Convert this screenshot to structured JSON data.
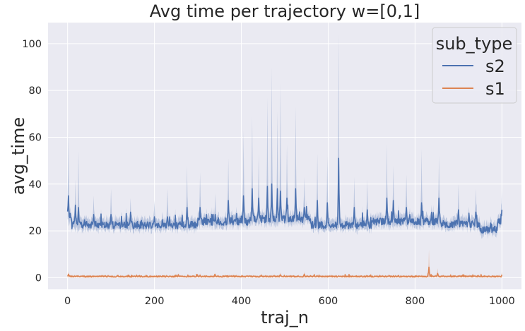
{
  "chart_data": {
    "type": "line",
    "title": "Avg time per trajectory w=[0,1]",
    "xlabel": "traj_n",
    "ylabel": "avg_time",
    "xlim": [
      -45,
      1045
    ],
    "ylim": [
      -5,
      109
    ],
    "xticks": [
      0,
      200,
      400,
      600,
      800,
      1000
    ],
    "yticks": [
      0,
      20,
      40,
      60,
      80,
      100
    ],
    "grid": true,
    "background": "#eaeaf2",
    "legend": {
      "title": "sub_type",
      "position": "top-right"
    },
    "confidence_band": true,
    "series": [
      {
        "name": "s2",
        "color": "#4c72b0",
        "base": 23,
        "noise": 1.6,
        "band": 2.6,
        "segments": [
          {
            "x": [
              0,
              10
            ],
            "value": 26
          },
          {
            "x": [
              10,
              180
            ],
            "value": 22.5
          },
          {
            "x": [
              180,
              300
            ],
            "value": 22.5
          },
          {
            "x": [
              300,
              420
            ],
            "value": 24
          },
          {
            "x": [
              420,
              560
            ],
            "value": 25
          },
          {
            "x": [
              560,
              700
            ],
            "value": 22.5
          },
          {
            "x": [
              700,
              860
            ],
            "value": 24
          },
          {
            "x": [
              860,
              950
            ],
            "value": 23
          },
          {
            "x": [
              950,
              990
            ],
            "value": 20.5
          },
          {
            "x": [
              990,
              1000
            ],
            "value": 24
          }
        ],
        "peaks": [
          {
            "x": 2,
            "mean": 35,
            "upper": 62
          },
          {
            "x": 18,
            "mean": 31,
            "upper": 42
          },
          {
            "x": 25,
            "mean": 30,
            "upper": 54
          },
          {
            "x": 60,
            "mean": 27,
            "upper": 35
          },
          {
            "x": 100,
            "mean": 27,
            "upper": 38
          },
          {
            "x": 145,
            "mean": 28,
            "upper": 34
          },
          {
            "x": 200,
            "mean": 26,
            "upper": 33
          },
          {
            "x": 230,
            "mean": 26,
            "upper": 38
          },
          {
            "x": 275,
            "mean": 30,
            "upper": 48
          },
          {
            "x": 305,
            "mean": 30,
            "upper": 45
          },
          {
            "x": 340,
            "mean": 27,
            "upper": 36
          },
          {
            "x": 370,
            "mean": 33,
            "upper": 51
          },
          {
            "x": 405,
            "mean": 35,
            "upper": 63
          },
          {
            "x": 425,
            "mean": 38,
            "upper": 69
          },
          {
            "x": 440,
            "mean": 34,
            "upper": 53
          },
          {
            "x": 460,
            "mean": 39,
            "upper": 77
          },
          {
            "x": 470,
            "mean": 40,
            "upper": 90
          },
          {
            "x": 483,
            "mean": 38,
            "upper": 71
          },
          {
            "x": 490,
            "mean": 37,
            "upper": 83
          },
          {
            "x": 505,
            "mean": 34,
            "upper": 57
          },
          {
            "x": 525,
            "mean": 38,
            "upper": 73
          },
          {
            "x": 545,
            "mean": 30,
            "upper": 43
          },
          {
            "x": 575,
            "mean": 33,
            "upper": 53
          },
          {
            "x": 598,
            "mean": 32,
            "upper": 52
          },
          {
            "x": 624,
            "mean": 51,
            "upper": 104
          },
          {
            "x": 660,
            "mean": 30,
            "upper": 43
          },
          {
            "x": 690,
            "mean": 29,
            "upper": 42
          },
          {
            "x": 735,
            "mean": 34,
            "upper": 57
          },
          {
            "x": 750,
            "mean": 33,
            "upper": 48
          },
          {
            "x": 780,
            "mean": 30,
            "upper": 44
          },
          {
            "x": 815,
            "mean": 32,
            "upper": 55
          },
          {
            "x": 855,
            "mean": 34,
            "upper": 52
          },
          {
            "x": 900,
            "mean": 29,
            "upper": 40
          },
          {
            "x": 940,
            "mean": 28,
            "upper": 38
          },
          {
            "x": 1000,
            "mean": 29,
            "upper": 38
          }
        ]
      },
      {
        "name": "s1",
        "color": "#dd8452",
        "base": 0.5,
        "noise": 0.25,
        "band": 0.5,
        "segments": [
          {
            "x": [
              0,
              1000
            ],
            "value": 0.5
          }
        ],
        "peaks": [
          {
            "x": 2,
            "mean": 1.5,
            "upper": 2.5
          },
          {
            "x": 305,
            "mean": 1.0,
            "upper": 1.8
          },
          {
            "x": 490,
            "mean": 1.2,
            "upper": 2.2
          },
          {
            "x": 545,
            "mean": 1.5,
            "upper": 2.5
          },
          {
            "x": 832,
            "mean": 4.5,
            "upper": 12
          },
          {
            "x": 852,
            "mean": 1.8,
            "upper": 4.0
          },
          {
            "x": 1000,
            "mean": 1.2,
            "upper": 2.5
          }
        ]
      }
    ]
  }
}
